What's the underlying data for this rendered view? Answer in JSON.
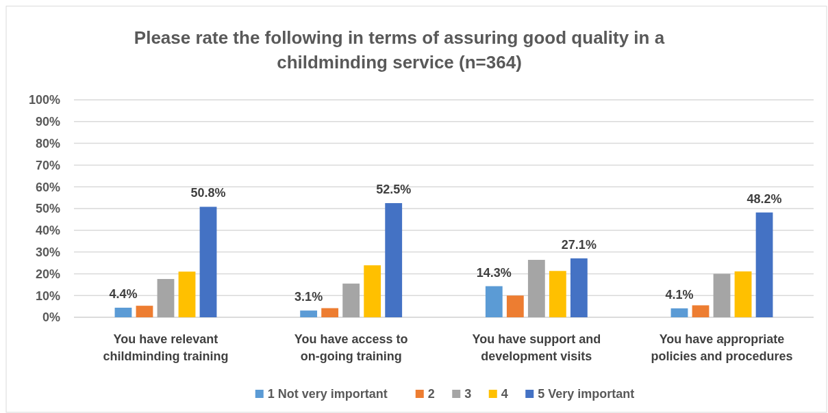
{
  "chart_data": {
    "type": "bar",
    "title": "Please rate the following in terms of assuring good quality in a childminding service (n=364)",
    "categories": [
      "You have relevant childminding training",
      "You have access to on-going training",
      "You have support and development visits",
      "You have appropriate policies and procedures"
    ],
    "series": [
      {
        "name": "1 Not very important",
        "color": "#5b9bd5",
        "values": [
          4.4,
          3.1,
          14.3,
          4.1
        ],
        "value_labels": [
          "4.4%",
          "3.1%",
          "14.3%",
          "4.1%"
        ]
      },
      {
        "name": "2",
        "color": "#ed7d31",
        "values": [
          5.3,
          4.2,
          10.0,
          5.5
        ]
      },
      {
        "name": "3",
        "color": "#a5a5a5",
        "values": [
          17.6,
          15.5,
          26.4,
          20.0
        ]
      },
      {
        "name": "4",
        "color": "#ffc000",
        "values": [
          21.0,
          23.9,
          21.3,
          21.1
        ]
      },
      {
        "name": "5 Very important",
        "color": "#4472c4",
        "values": [
          50.8,
          52.5,
          27.1,
          48.2
        ],
        "value_labels": [
          "50.8%",
          "52.5%",
          "27.1%",
          "48.2%"
        ]
      }
    ],
    "ylim": [
      0,
      100
    ],
    "yticks": [
      {
        "value": 0,
        "label": "0%"
      },
      {
        "value": 10,
        "label": "10%"
      },
      {
        "value": 20,
        "label": "20%"
      },
      {
        "value": 30,
        "label": "30%"
      },
      {
        "value": 40,
        "label": "40%"
      },
      {
        "value": 50,
        "label": "50%"
      },
      {
        "value": 60,
        "label": "60%"
      },
      {
        "value": 70,
        "label": "70%"
      },
      {
        "value": 80,
        "label": "80%"
      },
      {
        "value": 90,
        "label": "90%"
      },
      {
        "value": 100,
        "label": "100%"
      }
    ],
    "grid": "y",
    "legend": "bottom"
  }
}
